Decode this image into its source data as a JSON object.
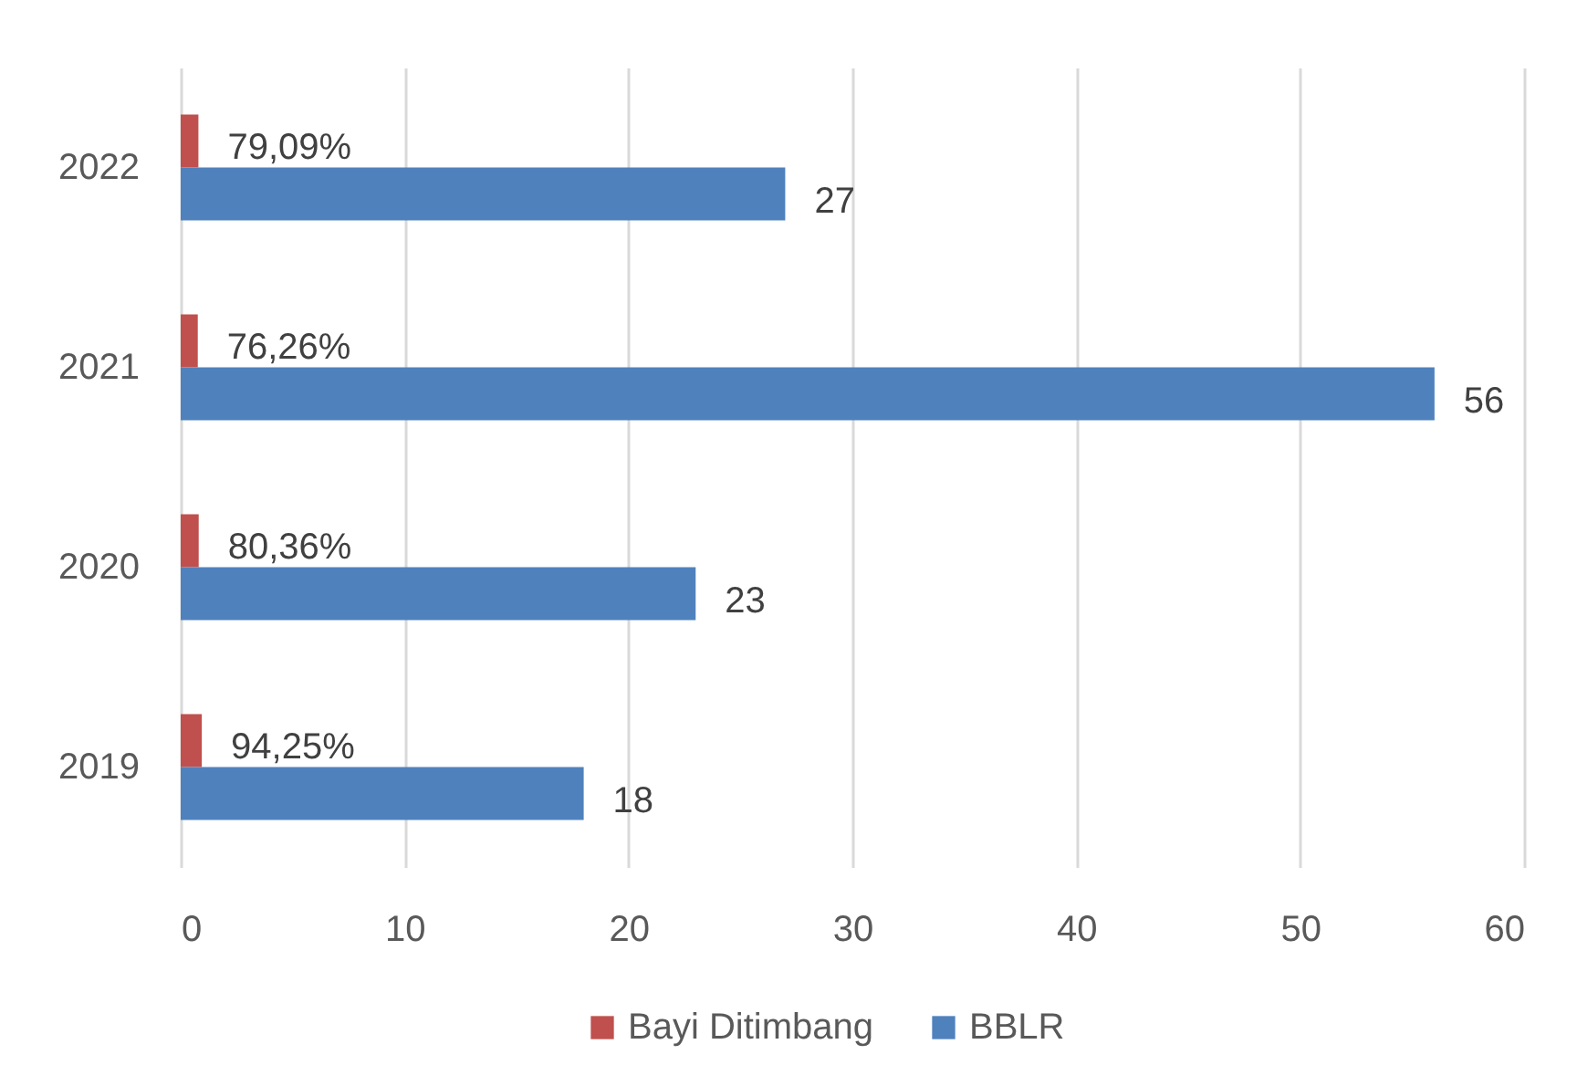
{
  "chart_data": {
    "type": "bar",
    "orientation": "horizontal",
    "categories": [
      "2022",
      "2021",
      "2020",
      "2019"
    ],
    "series": [
      {
        "name": "Bayi Ditimbang",
        "color": "#c0504d",
        "values": [
          0.7909,
          0.7626,
          0.8036,
          0.9425
        ],
        "value_labels": [
          "79,09%",
          "76,26%",
          "80,36%",
          "94,25%"
        ]
      },
      {
        "name": "BBLR",
        "color": "#4f81bd",
        "values": [
          27,
          56,
          23,
          18
        ],
        "value_labels": [
          "27",
          "56",
          "23",
          "18"
        ]
      }
    ],
    "xlim": [
      0,
      60
    ],
    "xticks": [
      0,
      10,
      20,
      30,
      40,
      50,
      60
    ],
    "grid": "x",
    "legend": "bottom"
  }
}
